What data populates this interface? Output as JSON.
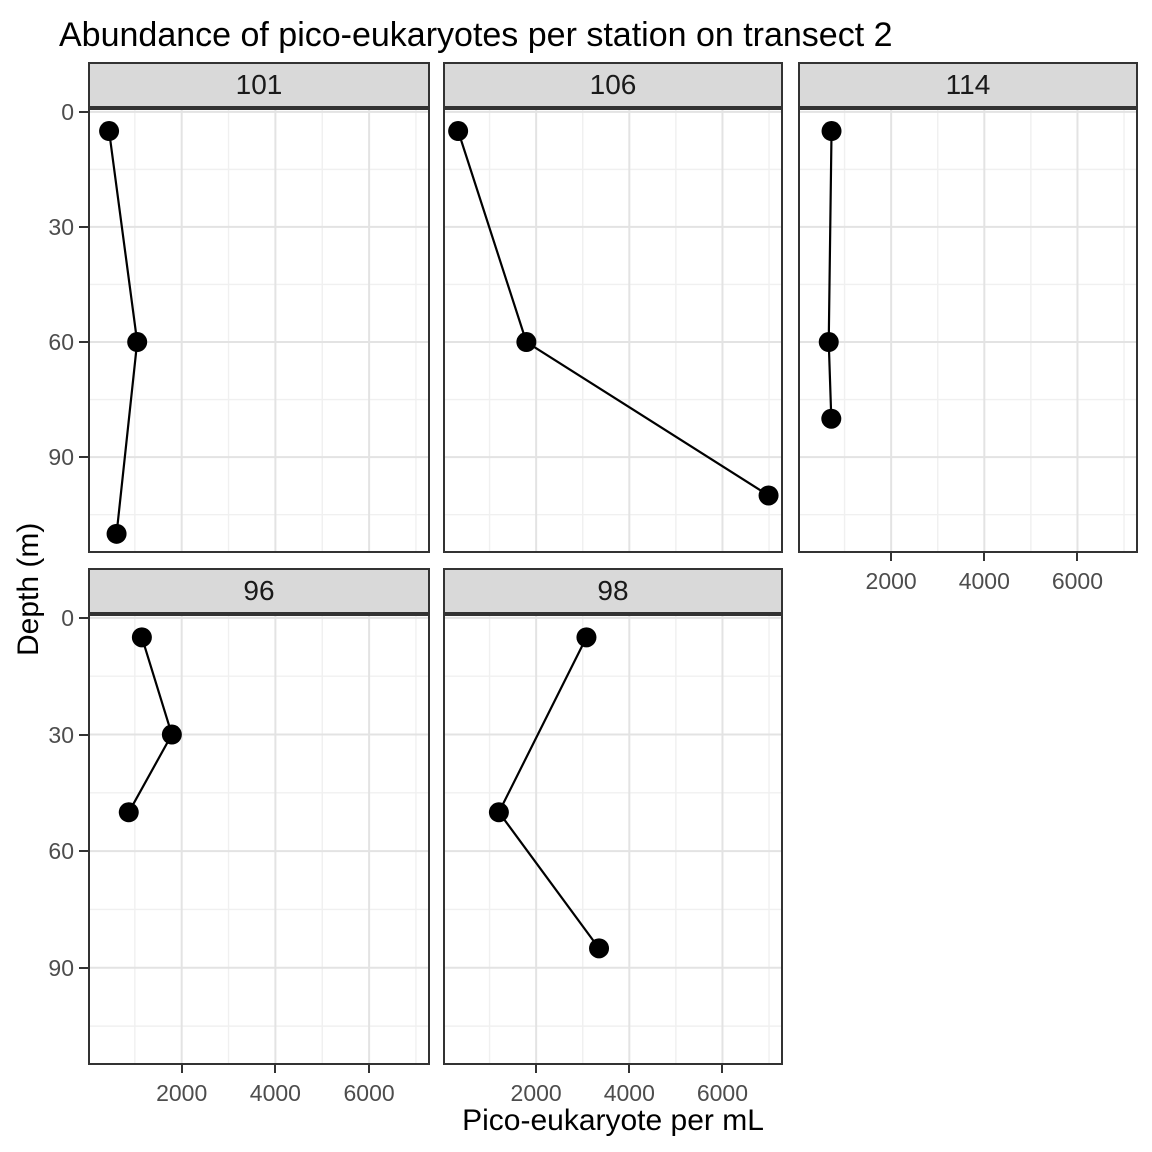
{
  "title": "Abundance of pico-eukaryotes per station on transect 2",
  "x_axis": {
    "label": "Pico-eukaryote per mL",
    "tick_labels": [
      "2000",
      "4000",
      "6000"
    ]
  },
  "y_axis": {
    "label": "Depth (m)",
    "tick_labels": [
      "0",
      "30",
      "60",
      "90"
    ]
  },
  "chart_data": {
    "type": "line",
    "title": "Abundance of pico-eukaryotes per station on transect 2",
    "xlabel": "Pico-eukaryote per mL",
    "ylabel": "Depth (m)",
    "facet_variable": "station",
    "facet_order": [
      "101",
      "106",
      "114",
      "96",
      "98"
    ],
    "xlim": [
      0,
      7300
    ],
    "ylim": [
      115,
      -1
    ],
    "y_reversed": true,
    "x_major_ticks": [
      2000,
      4000,
      6000
    ],
    "x_minor_gridlines": [
      1000,
      3000,
      5000,
      7000
    ],
    "y_major_ticks": [
      0,
      30,
      60,
      90
    ],
    "y_minor_gridlines": [
      15,
      45,
      75,
      105
    ],
    "grid": "major_and_minor",
    "legend": "none",
    "marker": "filled-circle",
    "facets": [
      {
        "station": "101",
        "series": [
          {
            "x": 450,
            "depth": 5
          },
          {
            "x": 1050,
            "depth": 60
          },
          {
            "x": 610,
            "depth": 110
          }
        ]
      },
      {
        "station": "106",
        "series": [
          {
            "x": 325,
            "depth": 5
          },
          {
            "x": 1790,
            "depth": 60
          },
          {
            "x": 6990,
            "depth": 100
          }
        ]
      },
      {
        "station": "114",
        "series": [
          {
            "x": 720,
            "depth": 5
          },
          {
            "x": 660,
            "depth": 60
          },
          {
            "x": 715,
            "depth": 80
          }
        ]
      },
      {
        "station": "96",
        "series": [
          {
            "x": 1150,
            "depth": 5
          },
          {
            "x": 1790,
            "depth": 30
          },
          {
            "x": 870,
            "depth": 50
          }
        ]
      },
      {
        "station": "98",
        "series": [
          {
            "x": 3080,
            "depth": 5
          },
          {
            "x": 1200,
            "depth": 50
          },
          {
            "x": 3350,
            "depth": 85
          }
        ]
      }
    ]
  },
  "colors": {
    "background": "#FFFFFF",
    "strip_fill": "#D9D9D9",
    "strip_border": "#333333",
    "panel_border": "#333333",
    "grid_major": "#E3E3E3",
    "grid_minor": "#F0F0F0",
    "line": "#000000",
    "point": "#000000",
    "axis_text": "#4D4D4D",
    "tick_mark": "#333333",
    "title_text": "#000000"
  }
}
